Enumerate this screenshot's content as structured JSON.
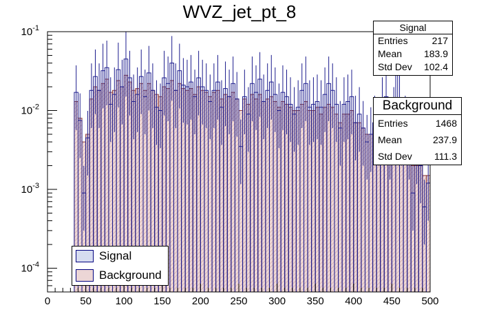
{
  "chart_data": {
    "type": "bar",
    "title": "WVZ_jet_pt_8",
    "xlabel": "",
    "ylabel": "",
    "xlim": [
      0,
      500
    ],
    "yscale": "log",
    "ylim": [
      5e-05,
      0.1
    ],
    "x_ticks": [
      "0",
      "50",
      "100",
      "150",
      "200",
      "250",
      "300",
      "350",
      "400",
      "450",
      "500"
    ],
    "y_ticks": [
      {
        "base": "10",
        "exp": "-4",
        "value": 0.0001
      },
      {
        "base": "10",
        "exp": "-3",
        "value": 0.001
      },
      {
        "base": "10",
        "exp": "-2",
        "value": 0.01
      },
      {
        "base": "10",
        "exp": "-1",
        "value": 0.1
      }
    ],
    "bin_width": 5,
    "series": [
      {
        "name": "Signal",
        "fill": "#d6dcf0",
        "line": "#1a1a8c",
        "x_start": 35,
        "values": [
          0.017,
          0.0075,
          0.0009,
          0.0045,
          0.018,
          0.027,
          0.018,
          0.032,
          0.035,
          0.012,
          0.016,
          0.033,
          0.02,
          0.045,
          0.026,
          0.013,
          0.016,
          0.027,
          0.015,
          0.03,
          0.018,
          0.011,
          0.01,
          0.026,
          0.022,
          0.04,
          0.018,
          0.032,
          0.021,
          0.02,
          0.023,
          0.015,
          0.026,
          0.02,
          0.018,
          0.013,
          0.018,
          0.023,
          0.011,
          0.019,
          0.015,
          0.022,
          0.014,
          0.0035,
          0.015,
          0.009,
          0.022,
          0.017,
          0.025,
          0.013,
          0.018,
          0.023,
          0.016,
          0.01,
          0.017,
          0.015,
          0.012,
          0.009,
          0.011,
          0.018,
          0.022,
          0.011,
          0.012,
          0.013,
          0.011,
          0.016,
          0.022,
          0.018,
          0.012,
          0.006,
          0.012,
          0.013,
          0.015,
          0.007,
          0.009,
          0.006,
          0.004,
          0.005,
          0.007,
          0.006,
          0.012,
          0.015,
          0.004,
          0.009,
          0.03,
          0.006,
          0.007,
          0.004,
          0.0009,
          0.0035,
          0.002,
          0.0006,
          0.0012
        ]
      },
      {
        "name": "Background",
        "fill": "#ecd6d6",
        "line": "#8c3a3a",
        "x_start": 35,
        "values": [
          0.013,
          0.008,
          0.004,
          0.005,
          0.014,
          0.02,
          0.018,
          0.022,
          0.025,
          0.017,
          0.018,
          0.024,
          0.02,
          0.028,
          0.023,
          0.018,
          0.019,
          0.022,
          0.018,
          0.022,
          0.018,
          0.016,
          0.015,
          0.02,
          0.019,
          0.024,
          0.018,
          0.022,
          0.019,
          0.018,
          0.019,
          0.016,
          0.02,
          0.018,
          0.017,
          0.015,
          0.017,
          0.018,
          0.014,
          0.016,
          0.015,
          0.017,
          0.014,
          0.01,
          0.014,
          0.012,
          0.016,
          0.014,
          0.016,
          0.013,
          0.014,
          0.015,
          0.013,
          0.011,
          0.013,
          0.012,
          0.011,
          0.01,
          0.01,
          0.012,
          0.013,
          0.01,
          0.01,
          0.011,
          0.009,
          0.011,
          0.012,
          0.011,
          0.009,
          0.007,
          0.009,
          0.009,
          0.01,
          0.007,
          0.007,
          0.006,
          0.005,
          0.005,
          0.006,
          0.005,
          0.007,
          0.008,
          0.004,
          0.005,
          0.008,
          0.004,
          0.004,
          0.003,
          0.002,
          0.002,
          0.002,
          0.0015,
          0.0015
        ]
      }
    ],
    "legend": {
      "position": "bottom-left",
      "entries": [
        {
          "label": "Signal",
          "color": "#d6dcf0"
        },
        {
          "label": "Background",
          "color": "#ecd6d6"
        }
      ]
    }
  },
  "stats": {
    "signal": {
      "title": "Signal",
      "rows": [
        {
          "label": "Entries",
          "value": "217"
        },
        {
          "label": "Mean",
          "value": "183.9"
        },
        {
          "label": "Std Dev",
          "value": "102.4"
        }
      ]
    },
    "background": {
      "title": "Background",
      "rows": [
        {
          "label": "Entries",
          "value": "1468"
        },
        {
          "label": "Mean",
          "value": "237.9"
        },
        {
          "label": "Std Dev",
          "value": "111.3"
        }
      ]
    }
  }
}
